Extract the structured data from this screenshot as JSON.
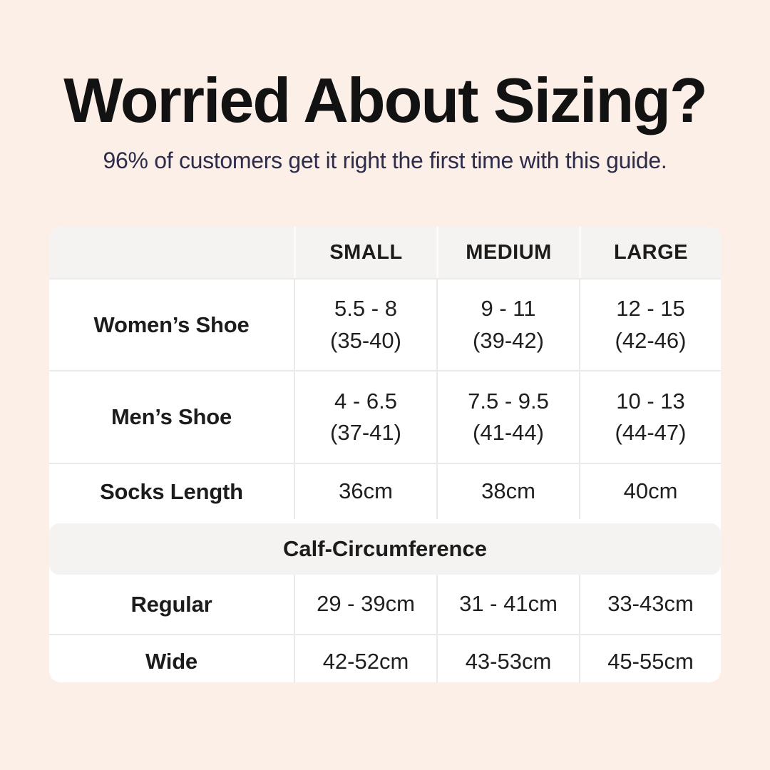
{
  "header": {
    "title": "Worried About Sizing?",
    "subtitle": "96% of customers get it right the first time with this guide."
  },
  "colors": {
    "page_background": "#FCEFE7",
    "card_background": "#FFFFFF",
    "header_band_background": "#F4F3F1",
    "grid_border": "#ECEAE7",
    "title_color": "#121212",
    "subtitle_color": "#2D2D4B",
    "text_color": "#1F1F1F"
  },
  "size_table": {
    "column_headers": [
      "SMALL",
      "MEDIUM",
      "LARGE"
    ],
    "rows": [
      {
        "label": "Women’s Shoe",
        "cells": [
          {
            "line1": "5.5 - 8",
            "line2": "(35-40)"
          },
          {
            "line1": "9 - 11",
            "line2": "(39-42)"
          },
          {
            "line1": "12 - 15",
            "line2": "(42-46)"
          }
        ]
      },
      {
        "label": "Men’s Shoe",
        "cells": [
          {
            "line1": "4 - 6.5",
            "line2": "(37-41)"
          },
          {
            "line1": "7.5 - 9.5",
            "line2": "(41-44)"
          },
          {
            "line1": "10 - 13",
            "line2": "(44-47)"
          }
        ]
      },
      {
        "label": "Socks Length",
        "cells": [
          {
            "line1": "36cm"
          },
          {
            "line1": "38cm"
          },
          {
            "line1": "40cm"
          }
        ]
      }
    ],
    "section_header": "Calf-Circumference",
    "calf_rows": [
      {
        "label": "Regular",
        "cells": [
          {
            "line1": "29 - 39cm"
          },
          {
            "line1": "31 - 41cm"
          },
          {
            "line1": "33-43cm"
          }
        ]
      },
      {
        "label": "Wide",
        "cells": [
          {
            "line1": "42-52cm"
          },
          {
            "line1": "43-53cm"
          },
          {
            "line1": "45-55cm"
          }
        ]
      }
    ]
  }
}
